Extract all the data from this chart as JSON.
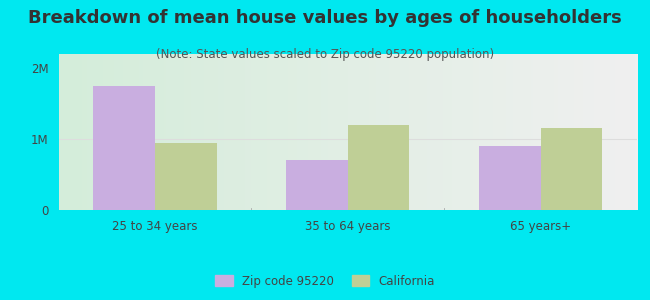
{
  "title": "Breakdown of mean house values by ages of householders",
  "subtitle": "(Note: State values scaled to Zip code 95220 population)",
  "categories": [
    "25 to 34 years",
    "35 to 64 years",
    "65 years+"
  ],
  "zip_values": [
    1750000,
    700000,
    900000
  ],
  "ca_values": [
    950000,
    1200000,
    1150000
  ],
  "zip_color": "#c9aee0",
  "ca_color": "#bfcf96",
  "background_color": "#00e8f0",
  "plot_bg_left": "#d4edda",
  "plot_bg_right": "#f0f0f0",
  "ylabel_ticks": [
    0,
    1000000,
    2000000
  ],
  "ylabel_labels": [
    "0",
    "1M",
    "2M"
  ],
  "ylim": [
    0,
    2200000
  ],
  "bar_width": 0.32,
  "legend_zip": "Zip code 95220",
  "legend_ca": "California",
  "title_fontsize": 13,
  "subtitle_fontsize": 8.5,
  "tick_fontsize": 8.5,
  "legend_fontsize": 8.5,
  "title_color": "#333333",
  "subtitle_color": "#555555",
  "tick_color": "#444444"
}
